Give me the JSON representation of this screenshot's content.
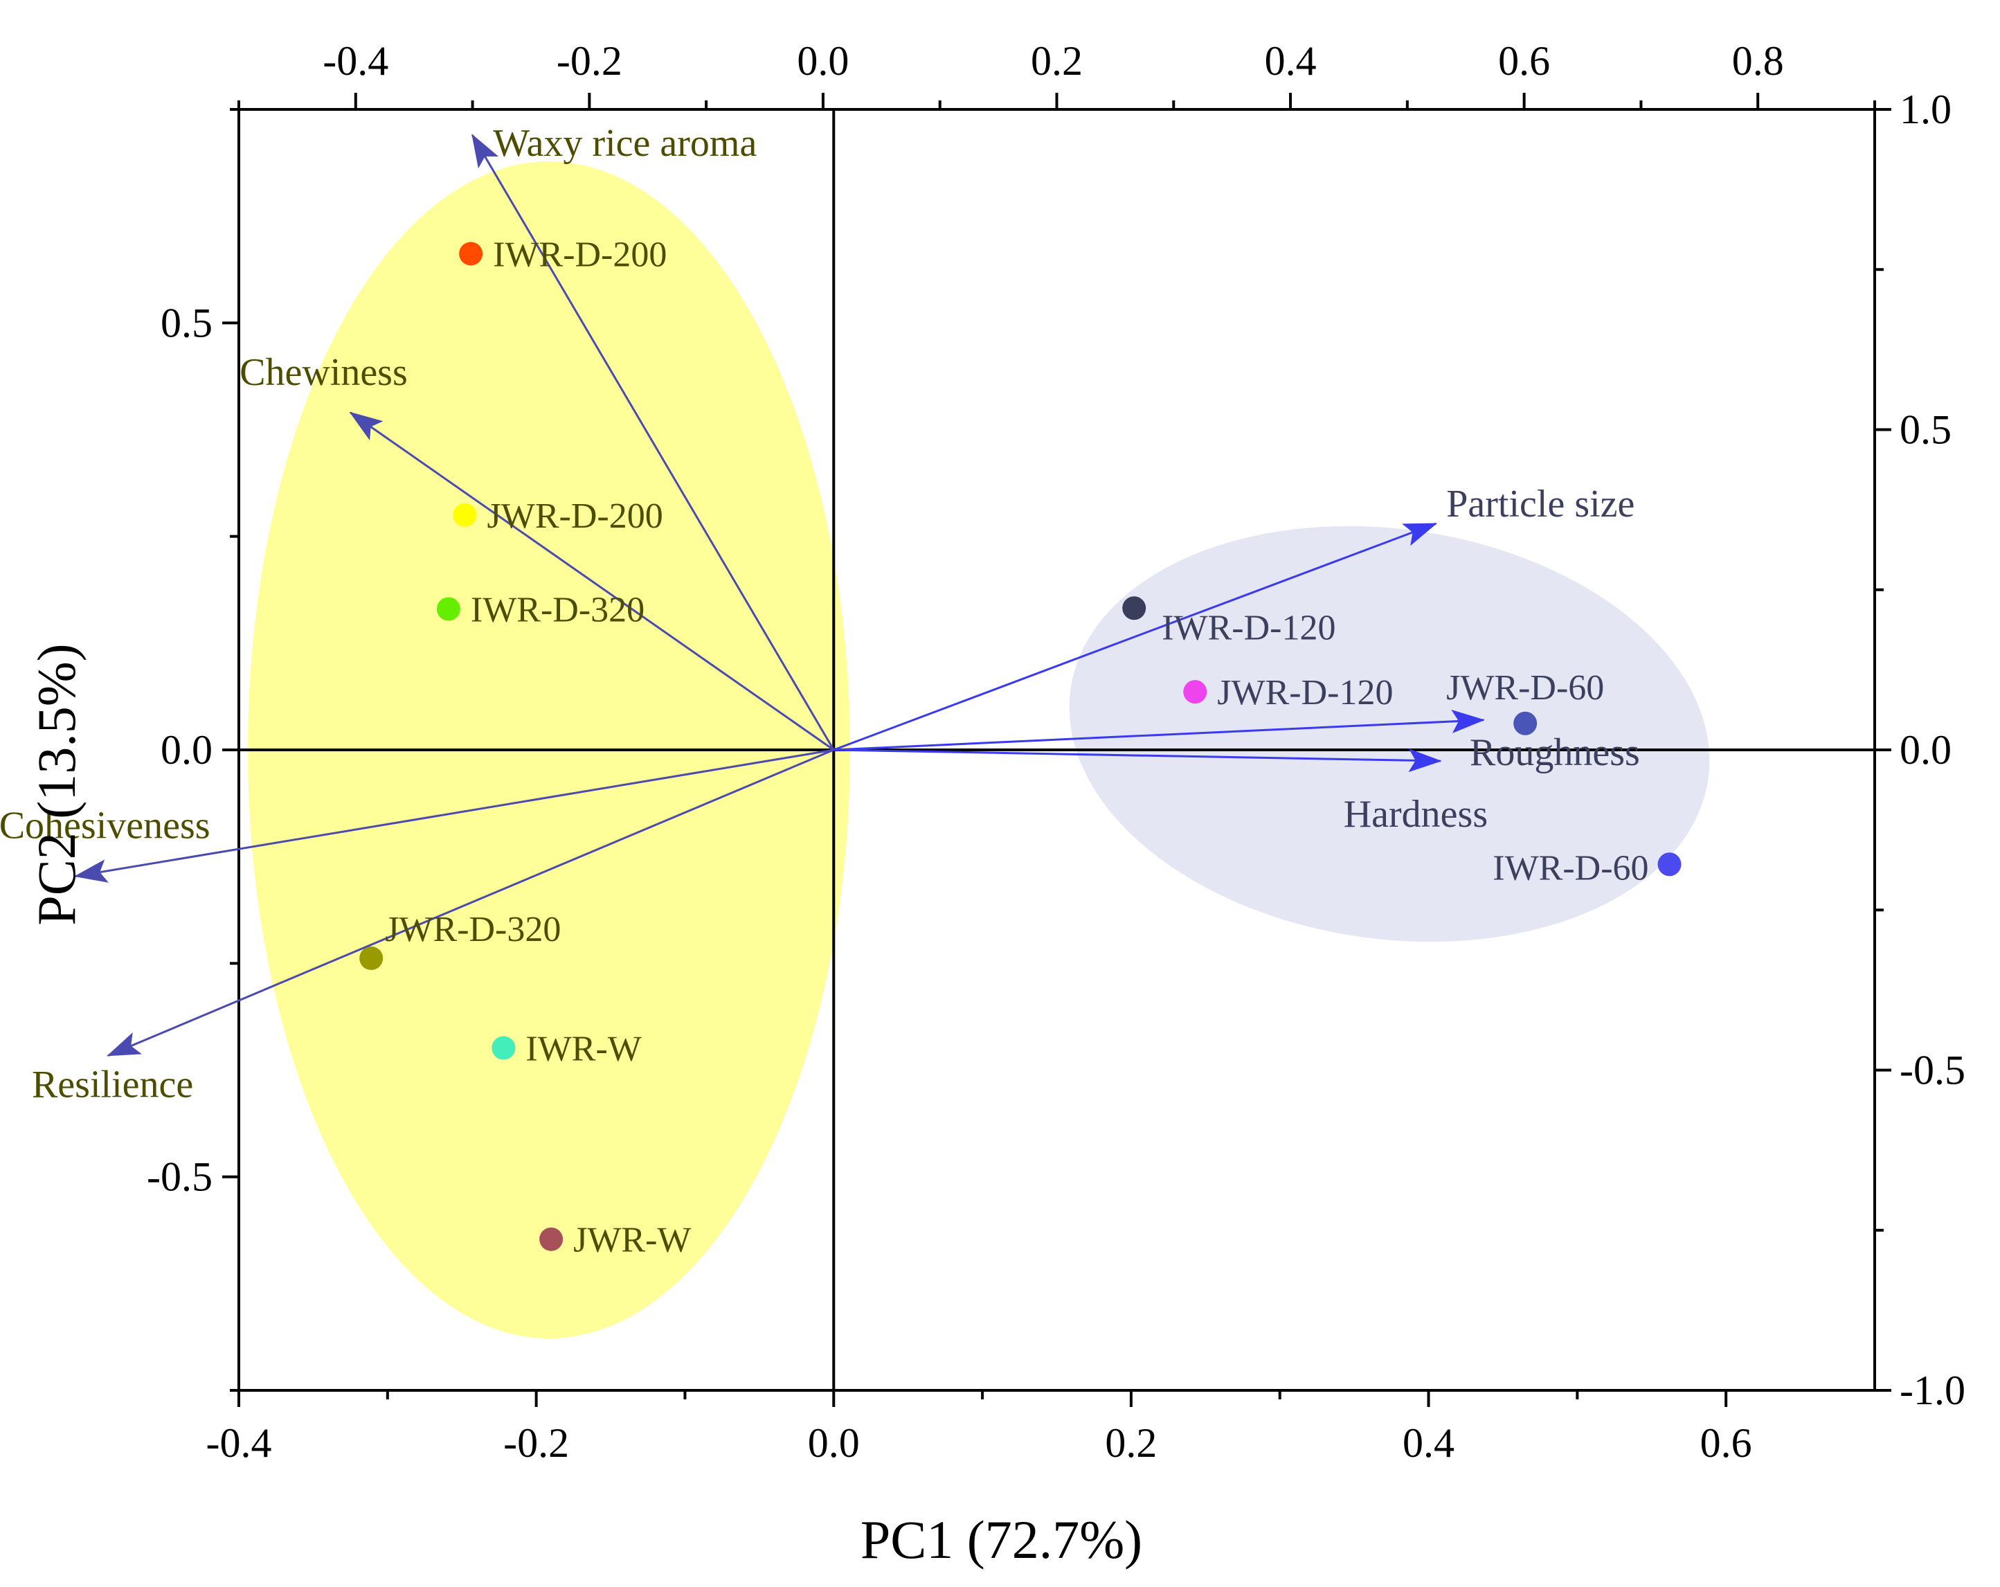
{
  "chart_data": {
    "type": "scatter",
    "subtype": "pca-biplot",
    "xlabel": "PC1 (72.7%)",
    "ylabel": "PC2 (13.5%)",
    "xlim": [
      -0.4,
      0.7
    ],
    "ylim": [
      -0.75,
      0.75
    ],
    "x_ticks": [
      -0.4,
      -0.2,
      0.0,
      0.2,
      0.4,
      0.6
    ],
    "x_tick_labels": [
      "-0.4",
      "-0.2",
      "0.0",
      "0.2",
      "0.4",
      "0.6"
    ],
    "y_ticks": [
      -0.5,
      0.0,
      0.5
    ],
    "y_tick_labels": [
      "-0.5",
      "0.0",
      "0.5"
    ],
    "top_axis": {
      "lim": [
        -0.5,
        0.9
      ],
      "ticks": [
        -0.4,
        -0.2,
        0.0,
        0.2,
        0.4,
        0.6,
        0.8
      ],
      "tick_labels": [
        "-0.4",
        "-0.2",
        "0.0",
        "0.2",
        "0.4",
        "0.6",
        "0.8"
      ]
    },
    "right_axis": {
      "lim": [
        -1.0,
        1.0
      ],
      "ticks": [
        -1.0,
        -0.5,
        0.0,
        0.5,
        1.0
      ],
      "tick_labels": [
        "-1.0",
        "-0.5",
        "0.0",
        "0.5",
        "1.0"
      ]
    },
    "grid": false,
    "zero_lines": true,
    "points": [
      {
        "label": "IWR-D-200",
        "x": -0.244,
        "y": 0.581,
        "color": "#ff4a00",
        "text_color": "#4d4d00"
      },
      {
        "label": "JWR-D-200",
        "x": -0.248,
        "y": 0.275,
        "color": "#ffff00",
        "text_color": "#4d4d00"
      },
      {
        "label": "IWR-D-320",
        "x": -0.259,
        "y": 0.165,
        "color": "#66ee00",
        "text_color": "#4d4d00"
      },
      {
        "label": "JWR-D-320",
        "x": -0.311,
        "y": -0.244,
        "color": "#999900",
        "text_color": "#4d4d00"
      },
      {
        "label": "IWR-W",
        "x": -0.222,
        "y": -0.349,
        "color": "#44eebb",
        "text_color": "#4d4d00"
      },
      {
        "label": "JWR-W",
        "x": -0.19,
        "y": -0.573,
        "color": "#a8505a",
        "text_color": "#4d4d00"
      },
      {
        "label": "IWR-D-120",
        "x": 0.202,
        "y": 0.166,
        "color": "#3a3d5c",
        "text_color": "#3d3f5e"
      },
      {
        "label": "JWR-D-120",
        "x": 0.243,
        "y": 0.068,
        "color": "#ee44ee",
        "text_color": "#3d3f5e"
      },
      {
        "label": "JWR-D-60",
        "x": 0.465,
        "y": 0.031,
        "color": "#4a55b8",
        "text_color": "#3d3f5e"
      },
      {
        "label": "IWR-D-60",
        "x": 0.562,
        "y": -0.134,
        "color": "#4a4aee",
        "text_color": "#3d3f5e"
      }
    ],
    "loadings": [
      {
        "label": "Waxy rice aroma",
        "x": -0.243,
        "y": 0.72,
        "color": "#4a4ab0",
        "text_color": "#4d4d00"
      },
      {
        "label": "Chewiness",
        "x": -0.325,
        "y": 0.395,
        "color": "#4a4ab0",
        "text_color": "#4d4d00"
      },
      {
        "label": "Cohesiveness",
        "x": -0.51,
        "y": -0.148,
        "color": "#4a4ab0",
        "text_color": "#4d4d00"
      },
      {
        "label": "Resilience",
        "x": -0.488,
        "y": -0.358,
        "color": "#4a4ab0",
        "text_color": "#4d4d00"
      },
      {
        "label": "Particle size",
        "x": 0.405,
        "y": 0.265,
        "color": "#3a3aee",
        "text_color": "#3d3f5e"
      },
      {
        "label": "Roughness",
        "x": 0.437,
        "y": 0.035,
        "color": "#3a3aee",
        "text_color": "#3d3f5e"
      },
      {
        "label": "Hardness",
        "x": 0.408,
        "y": -0.013,
        "color": "#3a3aee",
        "text_color": "#3d3f5e"
      }
    ],
    "clusters": [
      {
        "members": [
          "IWR-D-200",
          "JWR-D-200",
          "IWR-D-320",
          "JWR-D-320",
          "IWR-W",
          "JWR-W"
        ],
        "color": "#ffff99"
      },
      {
        "members": [
          "IWR-D-120",
          "JWR-D-120",
          "JWR-D-60",
          "IWR-D-60"
        ],
        "color": "#e4e6f3"
      }
    ]
  }
}
